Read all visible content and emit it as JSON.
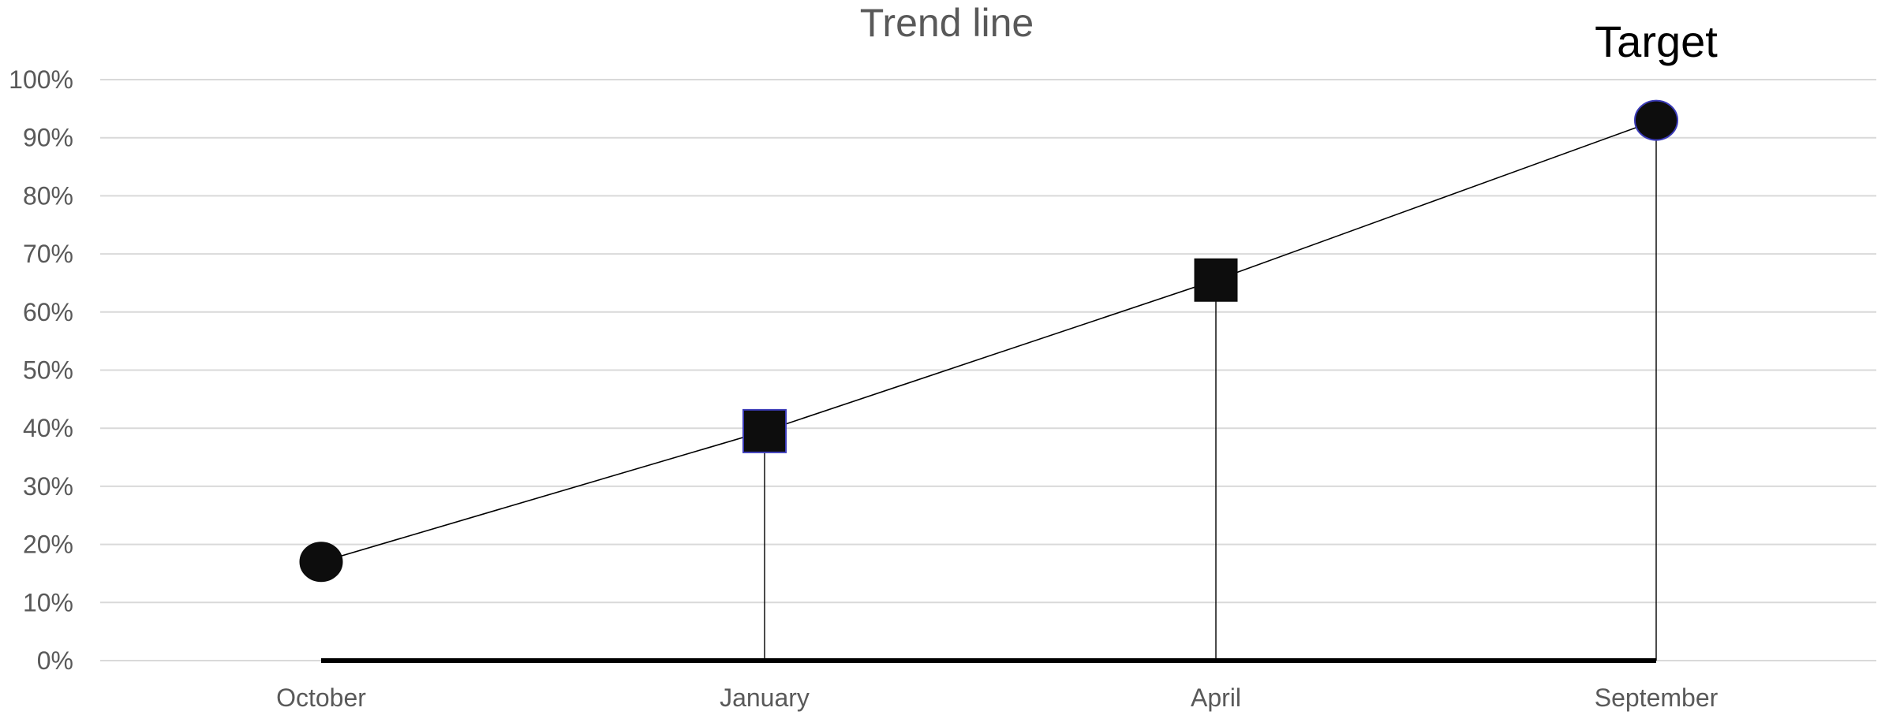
{
  "chart_data": {
    "type": "line",
    "title": "Trend line",
    "xlabel": "",
    "ylabel": "",
    "categories": [
      "October",
      "January",
      "April",
      "September"
    ],
    "series": [
      {
        "values": [
          0.17,
          0.395,
          0.655,
          0.93
        ],
        "markers": [
          "circle",
          "square",
          "square",
          "circle"
        ]
      }
    ],
    "ylim": [
      0,
      1
    ],
    "yticks": [
      0,
      0.1,
      0.2,
      0.3,
      0.4,
      0.5,
      0.6,
      0.7,
      0.8,
      0.9,
      1.0
    ],
    "ytick_labels": [
      "0%",
      "10%",
      "20%",
      "30%",
      "40%",
      "50%",
      "60%",
      "70%",
      "80%",
      "90%",
      "100%"
    ],
    "grid": true,
    "legend": "none",
    "annotations": [
      {
        "text": "Target",
        "category": "September"
      }
    ],
    "drop_lines_from": [
      "January",
      "April",
      "September"
    ],
    "colors": {
      "line": "#000000",
      "marker_fill": "#0d0d0d",
      "marker_edge": "#3b3bb8",
      "grid": "#d9d9d9",
      "text": "#595959"
    }
  }
}
